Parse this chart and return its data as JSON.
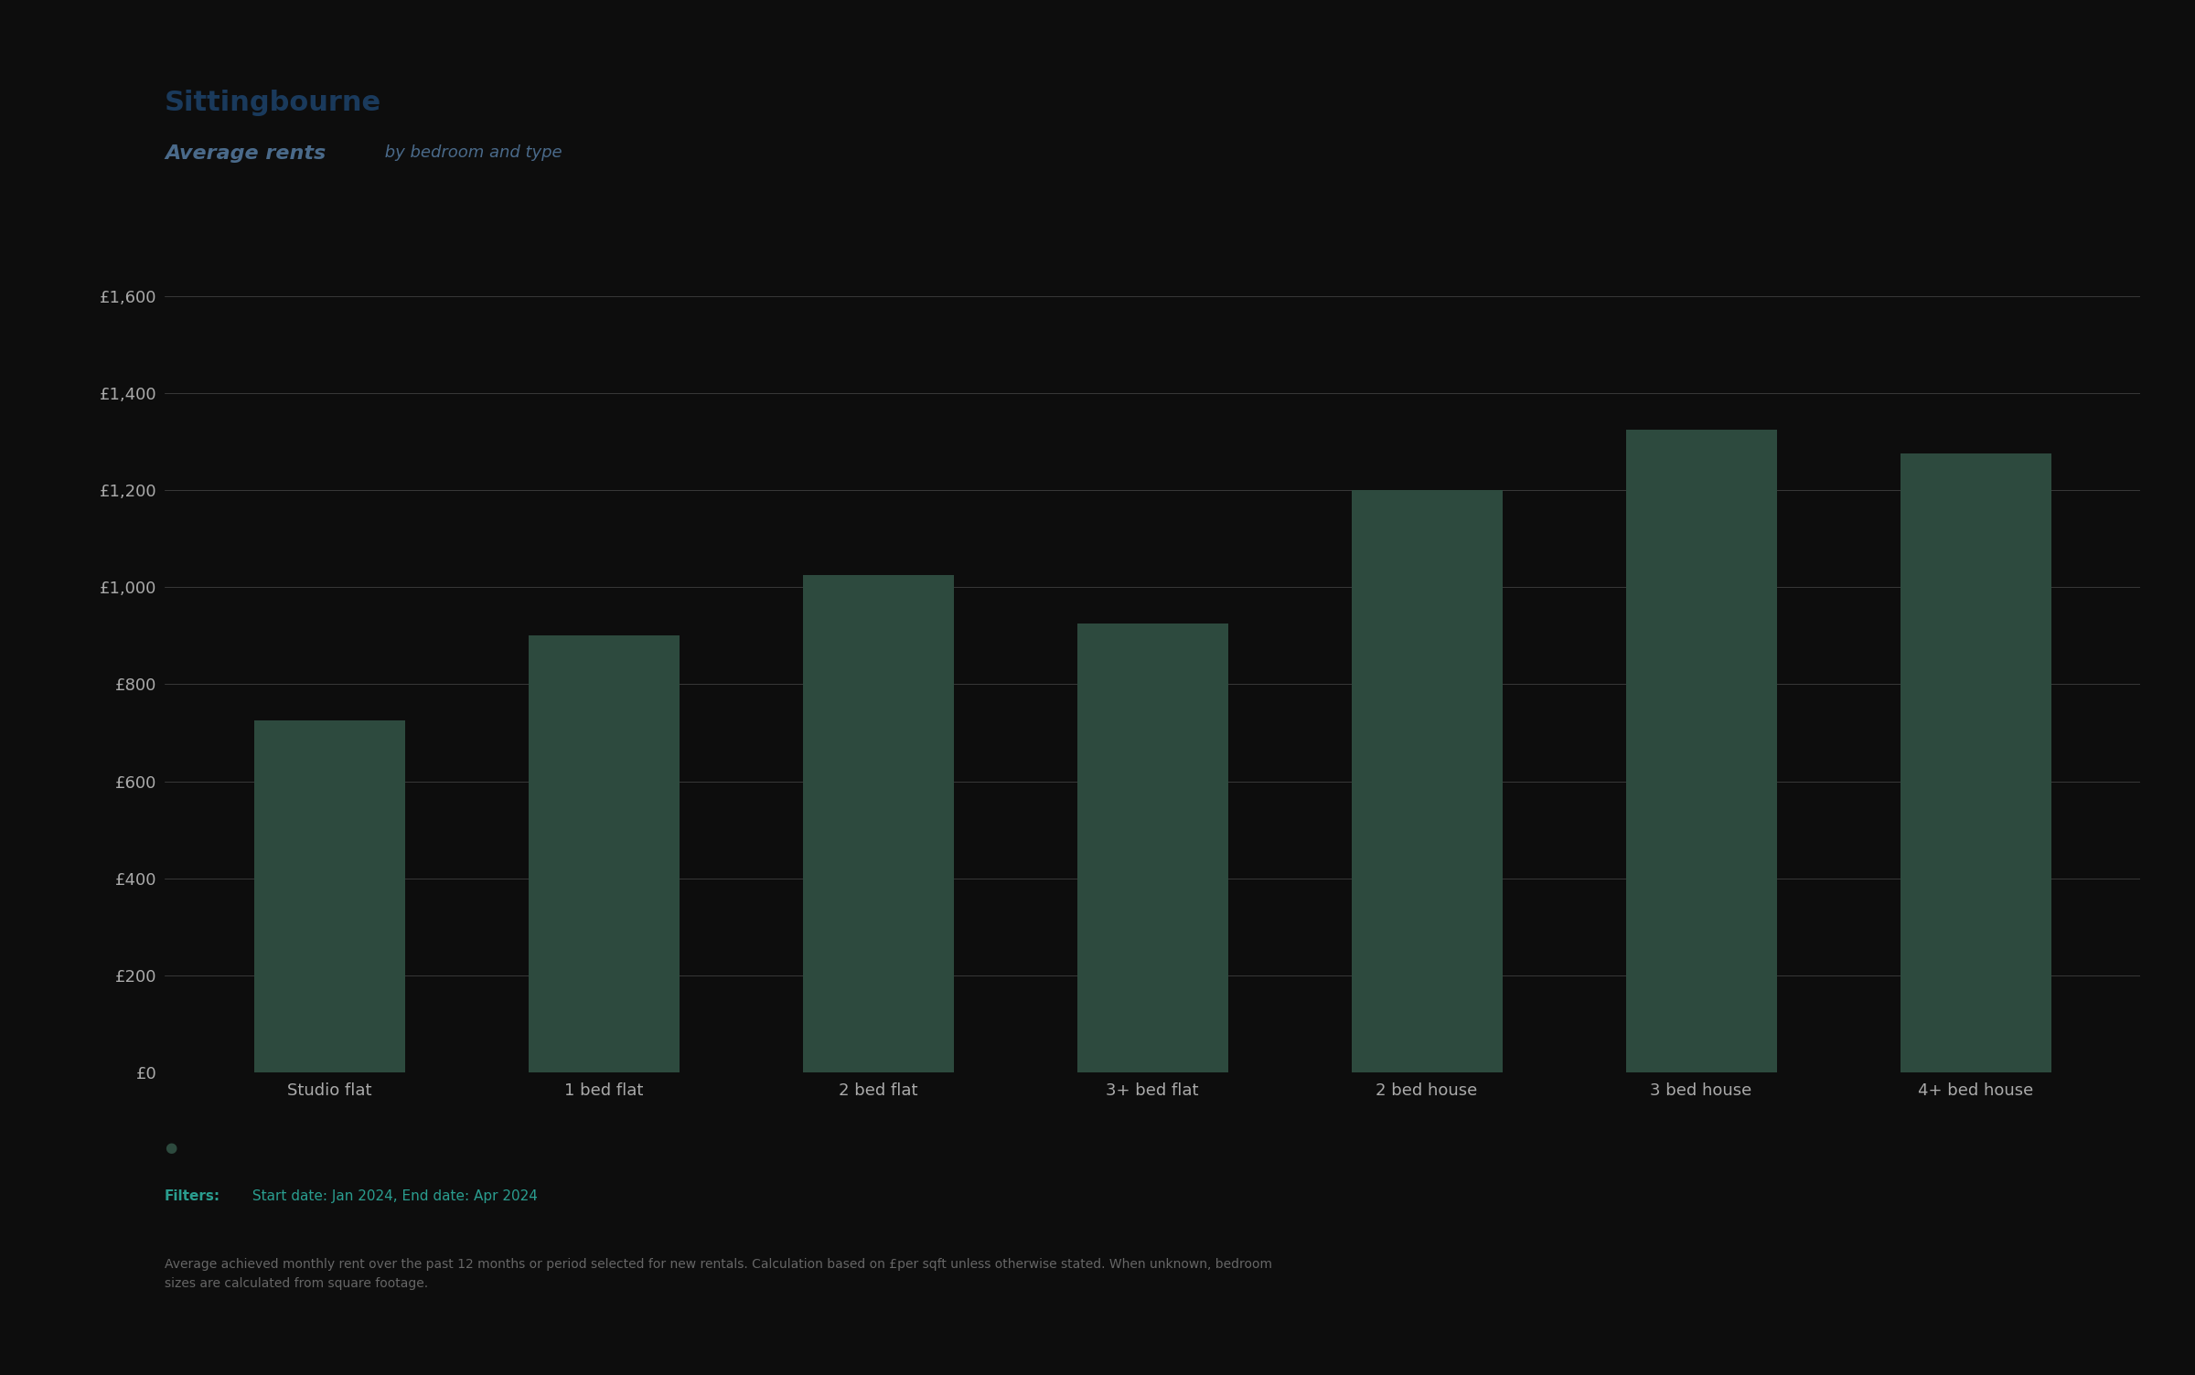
{
  "title_main": "Sittingbourne",
  "title_sub_bold": "Average rents",
  "title_sub_light": " by bedroom and type",
  "categories": [
    "Studio flat",
    "1 bed flat",
    "2 bed flat",
    "3+ bed flat",
    "2 bed house",
    "3 bed house",
    "4+ bed house"
  ],
  "values": [
    725,
    900,
    1025,
    925,
    1200,
    1325,
    1275
  ],
  "bar_color": "#2d4a3e",
  "background_color": "#0d0d0d",
  "title_color": "#1a3a5c",
  "subtitle_color": "#4a6a8a",
  "grid_color": "#ffffff",
  "tick_color": "#aaaaaa",
  "ylim": [
    0,
    1700
  ],
  "yticks": [
    0,
    200,
    400,
    600,
    800,
    1000,
    1200,
    1400,
    1600
  ],
  "ytick_labels": [
    "£0",
    "£200",
    "£400",
    "£600",
    "£800",
    "£1,000",
    "£1,200",
    "£1,400",
    "£1,600"
  ],
  "filter_label": "Filters:",
  "filter_text": " Start date: Jan 2024, End date: Apr 2024",
  "filter_color": "#2a9d8f",
  "footnote": "Average achieved monthly rent over the past 12 months or period selected for new rentals. Calculation based on £per sqft unless otherwise stated. When unknown, bedroom\nsizes are calculated from square footage.",
  "footnote_color": "#666666",
  "legend_dot_color": "#2d4a3e",
  "bar_width": 0.55,
  "title_fontsize": 22,
  "subtitle_bold_fontsize": 16,
  "subtitle_light_fontsize": 13,
  "tick_fontsize": 13,
  "filter_fontsize": 11,
  "footnote_fontsize": 10
}
